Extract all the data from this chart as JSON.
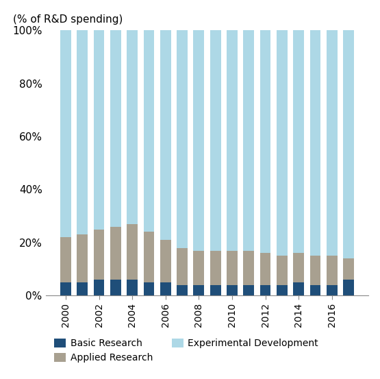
{
  "years": [
    2000,
    2001,
    2002,
    2003,
    2004,
    2005,
    2006,
    2007,
    2008,
    2009,
    2010,
    2011,
    2012,
    2013,
    2014,
    2015,
    2016,
    2017
  ],
  "basic_research": [
    5,
    5,
    6,
    6,
    6,
    5,
    5,
    4,
    4,
    4,
    4,
    4,
    4,
    4,
    5,
    4,
    4,
    6
  ],
  "applied_research": [
    17,
    18,
    19,
    20,
    21,
    19,
    16,
    14,
    13,
    13,
    13,
    13,
    12,
    11,
    11,
    11,
    11,
    8
  ],
  "experimental_development": [
    78,
    77,
    75,
    74,
    73,
    76,
    79,
    82,
    83,
    83,
    83,
    83,
    84,
    85,
    84,
    85,
    85,
    86
  ],
  "colors": {
    "basic_research": "#1f4e79",
    "applied_research": "#a8a090",
    "experimental_development": "#add8e6"
  },
  "labels": {
    "basic_research": "Basic Research",
    "applied_research": "Applied Research",
    "experimental_development": "Experimental Development"
  },
  "ylabel": "(% of R&D spending)",
  "ylim": [
    0,
    100
  ],
  "ytick_values": [
    0,
    20,
    40,
    60,
    80,
    100
  ],
  "ytick_labels": [
    "0%",
    "20%",
    "40%",
    "60%",
    "80%",
    "100%"
  ],
  "background_color": "#ffffff",
  "bar_width": 0.65
}
